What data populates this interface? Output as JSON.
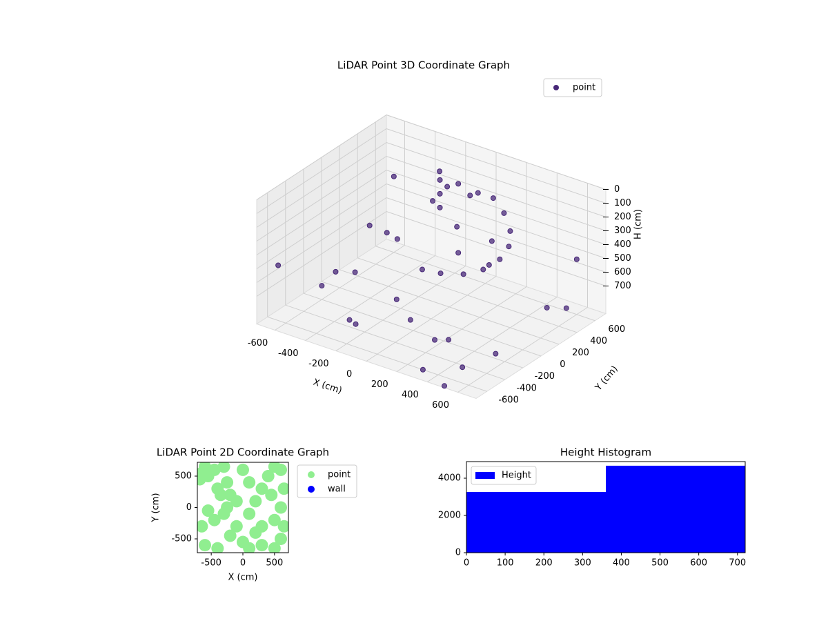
{
  "chart_data": [
    {
      "type": "scatter3d",
      "title": "LiDAR Point 3D Coordinate Graph",
      "x_label": "X (cm)",
      "y_label": "Y (cm)",
      "z_label": "H (cm)",
      "xlim": [
        -720,
        720
      ],
      "ylim": [
        -720,
        720
      ],
      "zlim": [
        0,
        900
      ],
      "z_inverted": true,
      "xticks": [
        -600,
        -400,
        -200,
        0,
        200,
        400,
        600
      ],
      "yticks": [
        -600,
        -400,
        -200,
        0,
        200,
        400,
        600
      ],
      "zticks": [
        0,
        100,
        200,
        300,
        400,
        500,
        600,
        700
      ],
      "grid": true,
      "legend": "upper right",
      "series": [
        {
          "name": "point",
          "color": "#482878",
          "x": [
            -150,
            -150,
            -150,
            -120,
            -180,
            0,
            0,
            100,
            200,
            300,
            400,
            450,
            450,
            400,
            300,
            150,
            0,
            50,
            250,
            350,
            -600,
            -500,
            -300,
            -400,
            -700,
            -650,
            500,
            600,
            650,
            700,
            300,
            -200,
            100,
            200,
            -100,
            -300,
            -600,
            600,
            500,
            -50,
            350,
            -350,
            -450
          ],
          "y": [
            350,
            350,
            350,
            380,
            320,
            300,
            300,
            350,
            350,
            300,
            200,
            100,
            0,
            -100,
            -150,
            -150,
            -100,
            200,
            250,
            50,
            -200,
            0,
            -400,
            300,
            500,
            -600,
            -500,
            -300,
            400,
            100,
            -600,
            -500,
            -400,
            -300,
            600,
            600,
            600,
            600,
            -700,
            -300,
            -400,
            100,
            -300
          ],
          "z": [
            100,
            200,
            300,
            150,
            250,
            50,
            550,
            100,
            100,
            150,
            200,
            250,
            300,
            350,
            400,
            450,
            500,
            300,
            350,
            400,
            800,
            750,
            850,
            600,
            700,
            500,
            850,
            800,
            750,
            600,
            900,
            800,
            700,
            850,
            300,
            200,
            350,
            500,
            900,
            650,
            750,
            450,
            600
          ]
        }
      ]
    },
    {
      "type": "scatter",
      "title": "LiDAR Point 2D Coordinate Graph",
      "x_label": "X (cm)",
      "y_label": "Y (cm)",
      "xlim": [
        -720,
        720
      ],
      "ylim": [
        -720,
        720
      ],
      "xticks": [
        -500,
        0,
        500
      ],
      "yticks": [
        -500,
        0,
        500
      ],
      "legend": "outside right",
      "series": [
        {
          "name": "point",
          "color": "#90ee90",
          "x": [
            -650,
            -600,
            -550,
            -680,
            -400,
            -450,
            -300,
            -250,
            -200,
            -250,
            -300,
            -450,
            -650,
            -600,
            -400,
            -200,
            -100,
            0,
            100,
            300,
            500,
            600,
            650,
            600,
            650,
            600,
            500,
            400,
            300,
            200,
            100,
            300,
            0,
            100,
            -100,
            450,
            500,
            200,
            -550,
            -350
          ],
          "y": [
            550,
            650,
            500,
            450,
            300,
            600,
            650,
            400,
            200,
            0,
            -100,
            -200,
            -300,
            -600,
            -650,
            -450,
            -300,
            -550,
            -650,
            -600,
            -650,
            -500,
            -300,
            0,
            300,
            600,
            650,
            500,
            300,
            100,
            -100,
            -300,
            600,
            400,
            100,
            200,
            -200,
            -400,
            -50,
            200
          ]
        },
        {
          "name": "wall",
          "color": "#0000ff",
          "x": [],
          "y": []
        }
      ]
    },
    {
      "type": "histogram",
      "title": "Height Histogram",
      "bins": [
        0,
        360,
        720
      ],
      "counts": [
        3260,
        4670
      ],
      "name": "Height",
      "color": "#0000ff",
      "xlim": [
        0,
        720
      ],
      "ylim": [
        0,
        4890
      ],
      "xticks": [
        0,
        100,
        200,
        300,
        400,
        500,
        600,
        700
      ],
      "yticks": [
        0,
        2000,
        4000
      ],
      "legend": "upper left"
    }
  ]
}
